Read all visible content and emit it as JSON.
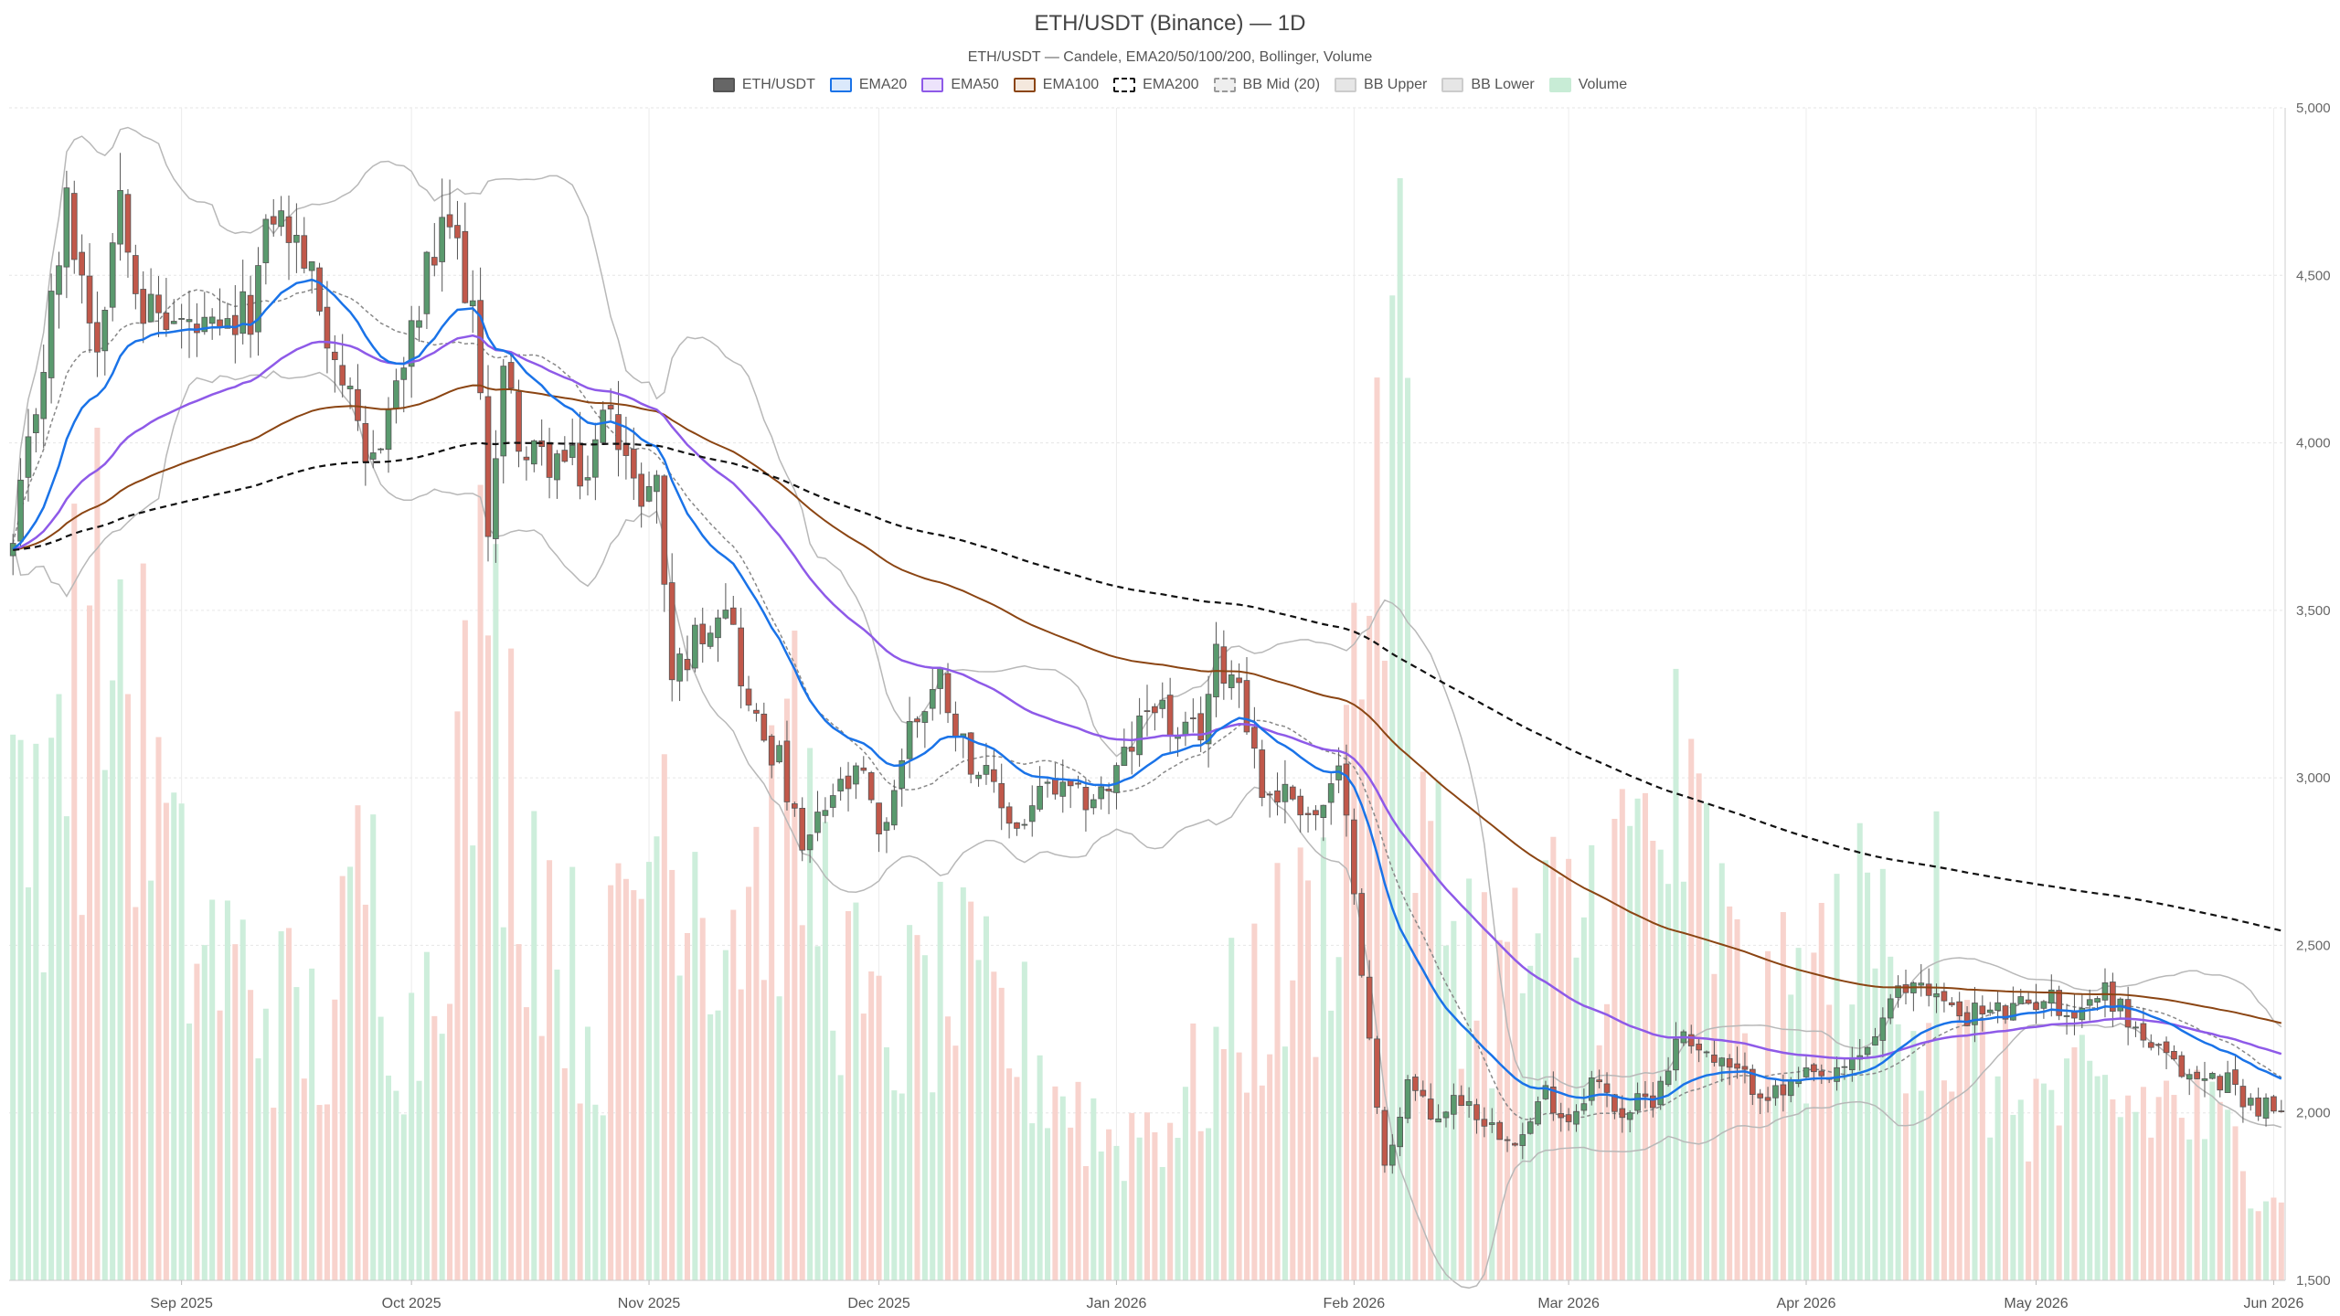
{
  "chart_data": {
    "type": "candlestick",
    "title": "ETH/USDT (Binance) — 1D",
    "subtitle": "ETH/USDT — Candele, EMA20/50/100/200, Bollinger, Volume",
    "legend": [
      {
        "name": "ETH/USDT",
        "fill": "#666666",
        "stroke": "#555555",
        "dash": false
      },
      {
        "name": "EMA20",
        "fill": "#dbe9fb",
        "stroke": "#1a73e8",
        "dash": false
      },
      {
        "name": "EMA50",
        "fill": "#ede3fb",
        "stroke": "#8e5ae8",
        "dash": false
      },
      {
        "name": "EMA100",
        "fill": "#f4e8dd",
        "stroke": "#8b4513",
        "dash": false
      },
      {
        "name": "EMA200",
        "fill": "#ffffff",
        "stroke": "#111111",
        "dash": true
      },
      {
        "name": "BB Mid (20)",
        "fill": "#eeeeee",
        "stroke": "#999999",
        "dash": true
      },
      {
        "name": "BB Upper",
        "fill": "#e6e6e6",
        "stroke": "#cccccc",
        "dash": false
      },
      {
        "name": "BB Lower",
        "fill": "#e6e6e6",
        "stroke": "#cccccc",
        "dash": false
      },
      {
        "name": "Volume",
        "fill": "#c8ecd6",
        "stroke": "#c8ecd6",
        "dash": false
      }
    ],
    "y_axis": {
      "min": 1500,
      "max": 5000,
      "ticks": [
        "5,000",
        "4,500",
        "4,000",
        "3,500",
        "3,000",
        "2,500",
        "2,000",
        "1,500"
      ],
      "tick_values": [
        5000,
        4500,
        4000,
        3500,
        3000,
        2500,
        2000,
        1500
      ],
      "position": "right"
    },
    "x_axis": {
      "start": "2025-08-10",
      "end": "2026-06-02",
      "ticks": [
        {
          "date": "2025-09-01",
          "label": "Sep 2025"
        },
        {
          "date": "2025-10-01",
          "label": "Oct 2025"
        },
        {
          "date": "2025-11-01",
          "label": "Nov 2025"
        },
        {
          "date": "2025-12-01",
          "label": "Dec 2025"
        },
        {
          "date": "2026-01-01",
          "label": "Jan 2026"
        },
        {
          "date": "2026-02-01",
          "label": "Feb 2026"
        },
        {
          "date": "2026-03-01",
          "label": "Mar 2026"
        },
        {
          "date": "2026-04-01",
          "label": "Apr 2026"
        },
        {
          "date": "2026-05-01",
          "label": "May 2026"
        },
        {
          "date": "2026-06-01",
          "label": "Jun 2026"
        }
      ]
    },
    "grid": true,
    "colors": {
      "up": "#5a9a6e",
      "down": "#c1584a",
      "vol_up": "#cdeedb",
      "vol_down": "#f8d3cd",
      "ema20": "#1a73e8",
      "ema50": "#8e5ae8",
      "ema100": "#8b4513",
      "ema200": "#111111",
      "bb_band": "#b8b8b8",
      "bb_mid": "#888888"
    },
    "close_keypoints": [
      [
        "2025-08-10",
        3680
      ],
      [
        "2025-08-14",
        4250
      ],
      [
        "2025-08-17",
        4700
      ],
      [
        "2025-08-21",
        4300
      ],
      [
        "2025-08-24",
        4770
      ],
      [
        "2025-08-27",
        4400
      ],
      [
        "2025-09-01",
        4350
      ],
      [
        "2025-09-06",
        4300
      ],
      [
        "2025-09-10",
        4400
      ],
      [
        "2025-09-13",
        4700
      ],
      [
        "2025-09-17",
        4550
      ],
      [
        "2025-09-22",
        4200
      ],
      [
        "2025-09-25",
        3900
      ],
      [
        "2025-09-28",
        4100
      ],
      [
        "2025-10-01",
        4300
      ],
      [
        "2025-10-03",
        4500
      ],
      [
        "2025-10-06",
        4650
      ],
      [
        "2025-10-09",
        4400
      ],
      [
        "2025-10-11",
        3770
      ],
      [
        "2025-10-13",
        4200
      ],
      [
        "2025-10-16",
        3950
      ],
      [
        "2025-10-20",
        3950
      ],
      [
        "2025-10-24",
        3900
      ],
      [
        "2025-10-27",
        4150
      ],
      [
        "2025-10-30",
        3850
      ],
      [
        "2025-11-02",
        3880
      ],
      [
        "2025-11-04",
        3300
      ],
      [
        "2025-11-08",
        3450
      ],
      [
        "2025-11-11",
        3550
      ],
      [
        "2025-11-14",
        3200
      ],
      [
        "2025-11-18",
        3050
      ],
      [
        "2025-11-21",
        2770
      ],
      [
        "2025-11-25",
        2950
      ],
      [
        "2025-11-29",
        3000
      ],
      [
        "2025-12-01",
        2800
      ],
      [
        "2025-12-05",
        3150
      ],
      [
        "2025-12-09",
        3300
      ],
      [
        "2025-12-12",
        3100
      ],
      [
        "2025-12-16",
        2950
      ],
      [
        "2025-12-19",
        2850
      ],
      [
        "2025-12-23",
        2970
      ],
      [
        "2025-12-27",
        2930
      ],
      [
        "2025-12-31",
        2970
      ],
      [
        "2026-01-03",
        3100
      ],
      [
        "2026-01-06",
        3250
      ],
      [
        "2026-01-09",
        3100
      ],
      [
        "2026-01-12",
        3150
      ],
      [
        "2026-01-14",
        3350
      ],
      [
        "2026-01-17",
        3300
      ],
      [
        "2026-01-20",
        2960
      ],
      [
        "2026-01-24",
        2950
      ],
      [
        "2026-01-27",
        2880
      ],
      [
        "2026-01-30",
        3000
      ],
      [
        "2026-02-01",
        2700
      ],
      [
        "2026-02-03",
        2200
      ],
      [
        "2026-02-05",
        1830
      ],
      [
        "2026-02-08",
        2100
      ],
      [
        "2026-02-11",
        1980
      ],
      [
        "2026-02-15",
        2050
      ],
      [
        "2026-02-19",
        1960
      ],
      [
        "2026-02-23",
        1930
      ],
      [
        "2026-02-26",
        2060
      ],
      [
        "2026-03-01",
        1980
      ],
      [
        "2026-03-04",
        2100
      ],
      [
        "2026-03-08",
        2000
      ],
      [
        "2026-03-12",
        2050
      ],
      [
        "2026-03-16",
        2250
      ],
      [
        "2026-03-20",
        2150
      ],
      [
        "2026-03-24",
        2100
      ],
      [
        "2026-03-28",
        2050
      ],
      [
        "2026-04-01",
        2100
      ],
      [
        "2026-04-05",
        2100
      ],
      [
        "2026-04-09",
        2200
      ],
      [
        "2026-04-13",
        2350
      ],
      [
        "2026-04-16",
        2400
      ],
      [
        "2026-04-20",
        2300
      ],
      [
        "2026-04-24",
        2300
      ],
      [
        "2026-04-28",
        2300
      ],
      [
        "2026-05-02",
        2350
      ],
      [
        "2026-05-06",
        2300
      ],
      [
        "2026-05-10",
        2370
      ],
      [
        "2026-05-14",
        2250
      ],
      [
        "2026-05-18",
        2150
      ],
      [
        "2026-05-22",
        2100
      ],
      [
        "2026-05-26",
        2100
      ],
      [
        "2026-05-29",
        2030
      ],
      [
        "2026-06-02",
        2000
      ]
    ],
    "volume_keypoints": [
      [
        "2025-08-10",
        0.35
      ],
      [
        "2025-08-17",
        0.5
      ],
      [
        "2025-08-24",
        0.55
      ],
      [
        "2025-09-01",
        0.3
      ],
      [
        "2025-09-10",
        0.25
      ],
      [
        "2025-09-20",
        0.2
      ],
      [
        "2025-09-25",
        0.35
      ],
      [
        "2025-10-01",
        0.2
      ],
      [
        "2025-10-11",
        0.55
      ],
      [
        "2025-10-15",
        0.4
      ],
      [
        "2025-10-25",
        0.2
      ],
      [
        "2025-11-04",
        0.45
      ],
      [
        "2025-11-10",
        0.3
      ],
      [
        "2025-11-20",
        0.4
      ],
      [
        "2025-11-30",
        0.2
      ],
      [
        "2025-12-10",
        0.25
      ],
      [
        "2025-12-20",
        0.2
      ],
      [
        "2025-12-31",
        0.12
      ],
      [
        "2026-01-10",
        0.15
      ],
      [
        "2026-01-20",
        0.25
      ],
      [
        "2026-01-28",
        0.3
      ],
      [
        "2026-02-03",
        0.6
      ],
      [
        "2026-02-06",
        0.75
      ],
      [
        "2026-02-10",
        0.35
      ],
      [
        "2026-02-20",
        0.25
      ],
      [
        "2026-03-01",
        0.3
      ],
      [
        "2026-03-16",
        0.4
      ],
      [
        "2026-03-25",
        0.2
      ],
      [
        "2026-04-10",
        0.3
      ],
      [
        "2026-04-20",
        0.2
      ],
      [
        "2026-05-01",
        0.15
      ],
      [
        "2026-05-20",
        0.15
      ],
      [
        "2026-06-02",
        0.08
      ]
    ],
    "volume_spikes": [
      [
        "2025-08-16",
        0.5
      ],
      [
        "2025-08-25",
        0.5
      ],
      [
        "2025-10-11",
        0.55
      ],
      [
        "2025-11-04",
        0.35
      ],
      [
        "2026-02-04",
        0.77
      ],
      [
        "2026-02-06",
        0.84
      ],
      [
        "2026-02-07",
        0.94
      ],
      [
        "2026-03-16",
        0.34
      ],
      [
        "2026-04-18",
        0.4
      ]
    ],
    "ema_final": {
      "ema20": 2100,
      "ema50": 2170,
      "ema100": 2260,
      "ema200": 2540
    },
    "ema_start": 3680
  }
}
